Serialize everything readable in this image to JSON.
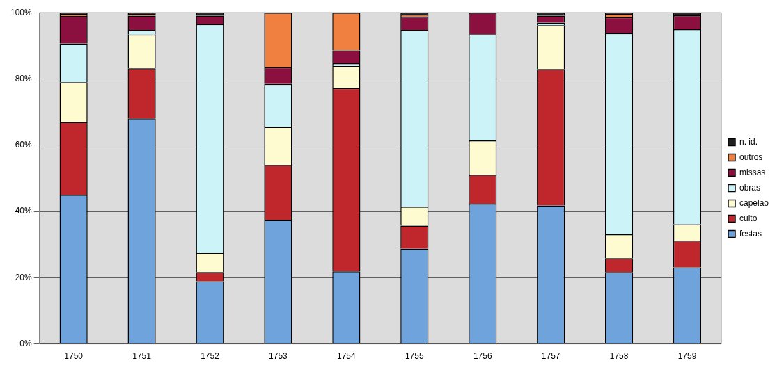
{
  "chart_data": {
    "type": "bar",
    "stacked": true,
    "categories": [
      "1750",
      "1751",
      "1752",
      "1753",
      "1754",
      "1755",
      "1756",
      "1757",
      "1758",
      "1759"
    ],
    "series": [
      {
        "name": "festas",
        "color": "#6fa3dc",
        "values": [
          45,
          68.1,
          18.9,
          37.4,
          21.9,
          28.8,
          42.3,
          41.8,
          21.7,
          23.1
        ]
      },
      {
        "name": "culto",
        "color": "#c0272d",
        "values": [
          22,
          15.1,
          2.8,
          16.6,
          55.3,
          6.9,
          8.8,
          41.2,
          4.2,
          8.1
        ]
      },
      {
        "name": "capelão",
        "color": "#fffbd0",
        "values": [
          12,
          10.2,
          5.7,
          11.5,
          6.7,
          5.7,
          10.3,
          13.2,
          7.2,
          4.9
        ]
      },
      {
        "name": "obras",
        "color": "#ccf4f8",
        "values": [
          11.7,
          1.4,
          69.1,
          13,
          0.8,
          53.4,
          32.1,
          0.8,
          60.7,
          58.9
        ]
      },
      {
        "name": "missas",
        "color": "#8b1040",
        "values": [
          8.3,
          4.3,
          2.6,
          5,
          3.9,
          4,
          6.5,
          2.1,
          4.8,
          4.2
        ]
      },
      {
        "name": "outros",
        "color": "#f08040",
        "values": [
          0.6,
          0.5,
          0,
          16.5,
          11.4,
          0.6,
          0,
          0,
          1,
          0
        ]
      },
      {
        "name": "n. id.",
        "color": "#202020",
        "values": [
          0.4,
          0.4,
          0.9,
          0,
          0,
          0.6,
          0,
          0.9,
          0.4,
          0.8
        ]
      }
    ],
    "ylim": [
      0,
      100
    ],
    "yticks": [
      {
        "value": 0,
        "label": "0%"
      },
      {
        "value": 20,
        "label": "20%"
      },
      {
        "value": 40,
        "label": "40%"
      },
      {
        "value": 60,
        "label": "60%"
      },
      {
        "value": 80,
        "label": "80%"
      },
      {
        "value": 100,
        "label": "100%"
      }
    ],
    "grid": "y",
    "legend": "right"
  }
}
